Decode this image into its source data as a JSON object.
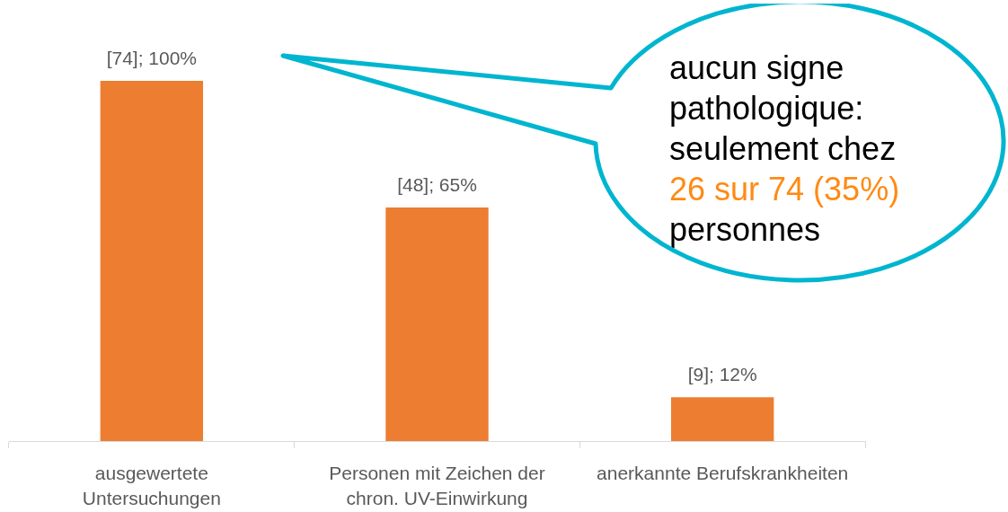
{
  "chart_data": {
    "type": "bar",
    "categories": [
      "ausgewertete\nUntersuchungen",
      "Personen mit Zeichen der\nchron. UV-Einwirkung",
      "anerkannte Berufskrankheiten"
    ],
    "values": [
      74,
      48,
      9
    ],
    "color": "#ed7d31",
    "value_labels": [
      "[74]; 100%",
      "[48]; 65%",
      "[9]; 12%"
    ],
    "annotations": [
      "aucun signe pathologique: seulement chez",
      "26 sur 74 (35%)",
      "personnes"
    ],
    "grid": false,
    "legend": false
  }
}
